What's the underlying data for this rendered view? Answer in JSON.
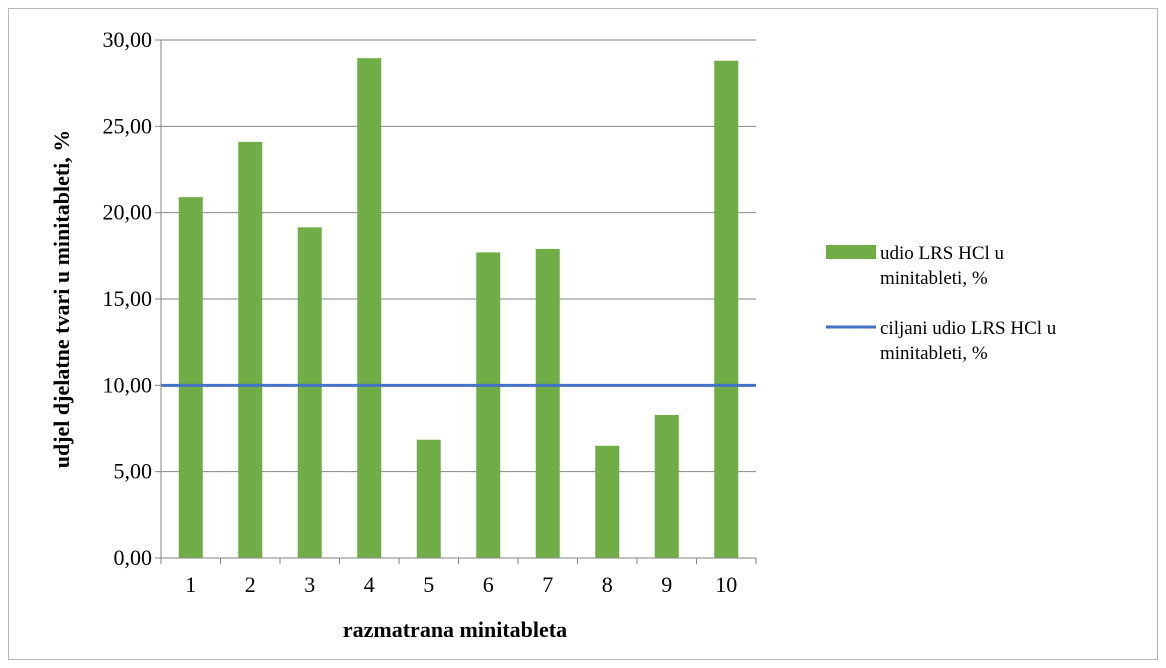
{
  "chart_data": {
    "type": "bar",
    "categories": [
      "1",
      "2",
      "3",
      "4",
      "5",
      "6",
      "7",
      "8",
      "9",
      "10"
    ],
    "series": [
      {
        "name": "udio LRS HCl u minitableti, %",
        "kind": "bar",
        "color": "#70ad47",
        "values": [
          20.9,
          24.1,
          19.15,
          28.95,
          6.85,
          17.7,
          17.9,
          6.5,
          8.28,
          28.8
        ]
      },
      {
        "name": "ciljani udio LRS HCl u minitableti, %",
        "kind": "line",
        "color": "#4472c4",
        "values": [
          10,
          10,
          10,
          10,
          10,
          10,
          10,
          10,
          10,
          10
        ]
      }
    ],
    "xlabel": "razmatrana minitableta",
    "ylabel": "udjel djelatne tvari u minitableti, %",
    "ylim": [
      0,
      30
    ],
    "yticks": [
      "0,00",
      "5,00",
      "10,00",
      "15,00",
      "20,00",
      "25,00",
      "30,00"
    ],
    "grid": true,
    "legend_position": "right"
  }
}
